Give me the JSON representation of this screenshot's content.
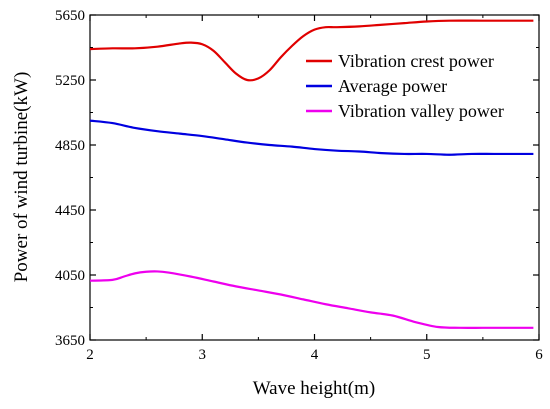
{
  "chart_data": {
    "type": "line",
    "title": "",
    "xlabel": "Wave height(m)",
    "ylabel": "Power of wind turbine(kW)",
    "xlim": [
      2,
      6
    ],
    "ylim": [
      3650,
      5650
    ],
    "xticks": [
      "2",
      "3",
      "4",
      "5",
      "6"
    ],
    "yticks": [
      "3650",
      "4050",
      "4450",
      "4850",
      "5250",
      "5650"
    ],
    "grid": false,
    "legend_position": "top-right",
    "series": [
      {
        "name": "Vibration crest power",
        "color": "#e00000",
        "x": [
          2.0,
          2.2,
          2.4,
          2.6,
          2.8,
          2.9,
          3.0,
          3.1,
          3.2,
          3.3,
          3.4,
          3.5,
          3.6,
          3.7,
          3.8,
          3.9,
          4.0,
          4.1,
          4.2,
          4.4,
          4.6,
          4.8,
          5.0,
          5.2,
          5.5,
          5.8,
          5.95
        ],
        "y": [
          5440,
          5445,
          5445,
          5455,
          5475,
          5480,
          5470,
          5430,
          5360,
          5290,
          5250,
          5260,
          5310,
          5390,
          5460,
          5520,
          5560,
          5575,
          5575,
          5580,
          5590,
          5600,
          5610,
          5615,
          5615,
          5615,
          5615
        ]
      },
      {
        "name": "Average power",
        "color": "#0000e0",
        "x": [
          2.0,
          2.2,
          2.4,
          2.6,
          2.8,
          3.0,
          3.2,
          3.4,
          3.6,
          3.8,
          4.0,
          4.2,
          4.4,
          4.6,
          4.8,
          5.0,
          5.2,
          5.4,
          5.6,
          5.8,
          5.95
        ],
        "y": [
          5000,
          4985,
          4955,
          4935,
          4920,
          4905,
          4885,
          4865,
          4850,
          4840,
          4825,
          4815,
          4810,
          4800,
          4795,
          4795,
          4790,
          4795,
          4795,
          4795,
          4795
        ]
      },
      {
        "name": "Vibration valley power",
        "color": "#ee00ee",
        "x": [
          2.0,
          2.2,
          2.3,
          2.4,
          2.5,
          2.6,
          2.7,
          2.9,
          3.1,
          3.3,
          3.5,
          3.7,
          3.9,
          4.1,
          4.3,
          4.5,
          4.7,
          4.9,
          5.1,
          5.3,
          5.5,
          5.7,
          5.95
        ],
        "y": [
          4015,
          4020,
          4040,
          4060,
          4070,
          4072,
          4065,
          4040,
          4010,
          3980,
          3955,
          3930,
          3900,
          3870,
          3845,
          3820,
          3800,
          3760,
          3730,
          3725,
          3725,
          3725,
          3725
        ]
      }
    ]
  }
}
